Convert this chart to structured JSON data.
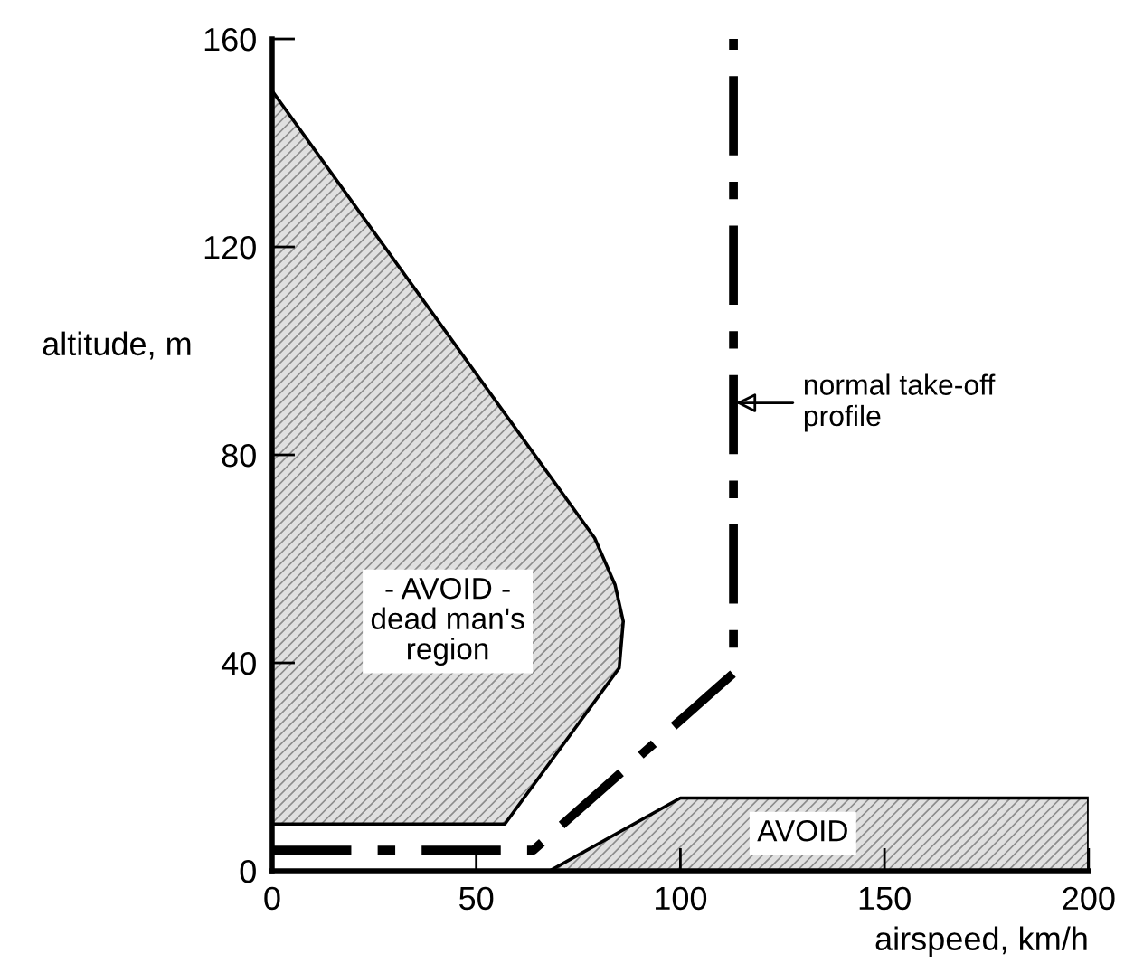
{
  "chart_data": {
    "type": "line",
    "xlabel": "airspeed, km/h",
    "ylabel": "altitude, m",
    "xlim": [
      0,
      200
    ],
    "xticks": [
      0,
      50,
      100,
      150,
      200
    ],
    "ylim": [
      0,
      160
    ],
    "yticks": [
      0,
      40,
      80,
      120,
      160
    ],
    "grid": false,
    "series": [
      {
        "type": "area",
        "color": "#e0e0e0",
        "x": [
          0,
          79,
          84,
          86,
          85,
          57,
          0,
          0
        ],
        "values": [
          150,
          64,
          55,
          48,
          39,
          9,
          9,
          150
        ]
      },
      {
        "type": "area",
        "color": "#e0e0e0",
        "x": [
          68,
          100,
          200,
          200,
          68
        ],
        "values": [
          0,
          14,
          14,
          0,
          0
        ]
      },
      {
        "color": "#000000",
        "line_style": "dashdot",
        "x": [
          0,
          64,
          113,
          113
        ],
        "values": [
          4,
          4,
          38,
          160
        ]
      }
    ],
    "annotations": [
      "- AVOID -\ndead man's\nregion",
      "AVOID",
      {
        "text": "normal take-off\nprofile",
        "x": 113,
        "y": 90
      }
    ]
  }
}
